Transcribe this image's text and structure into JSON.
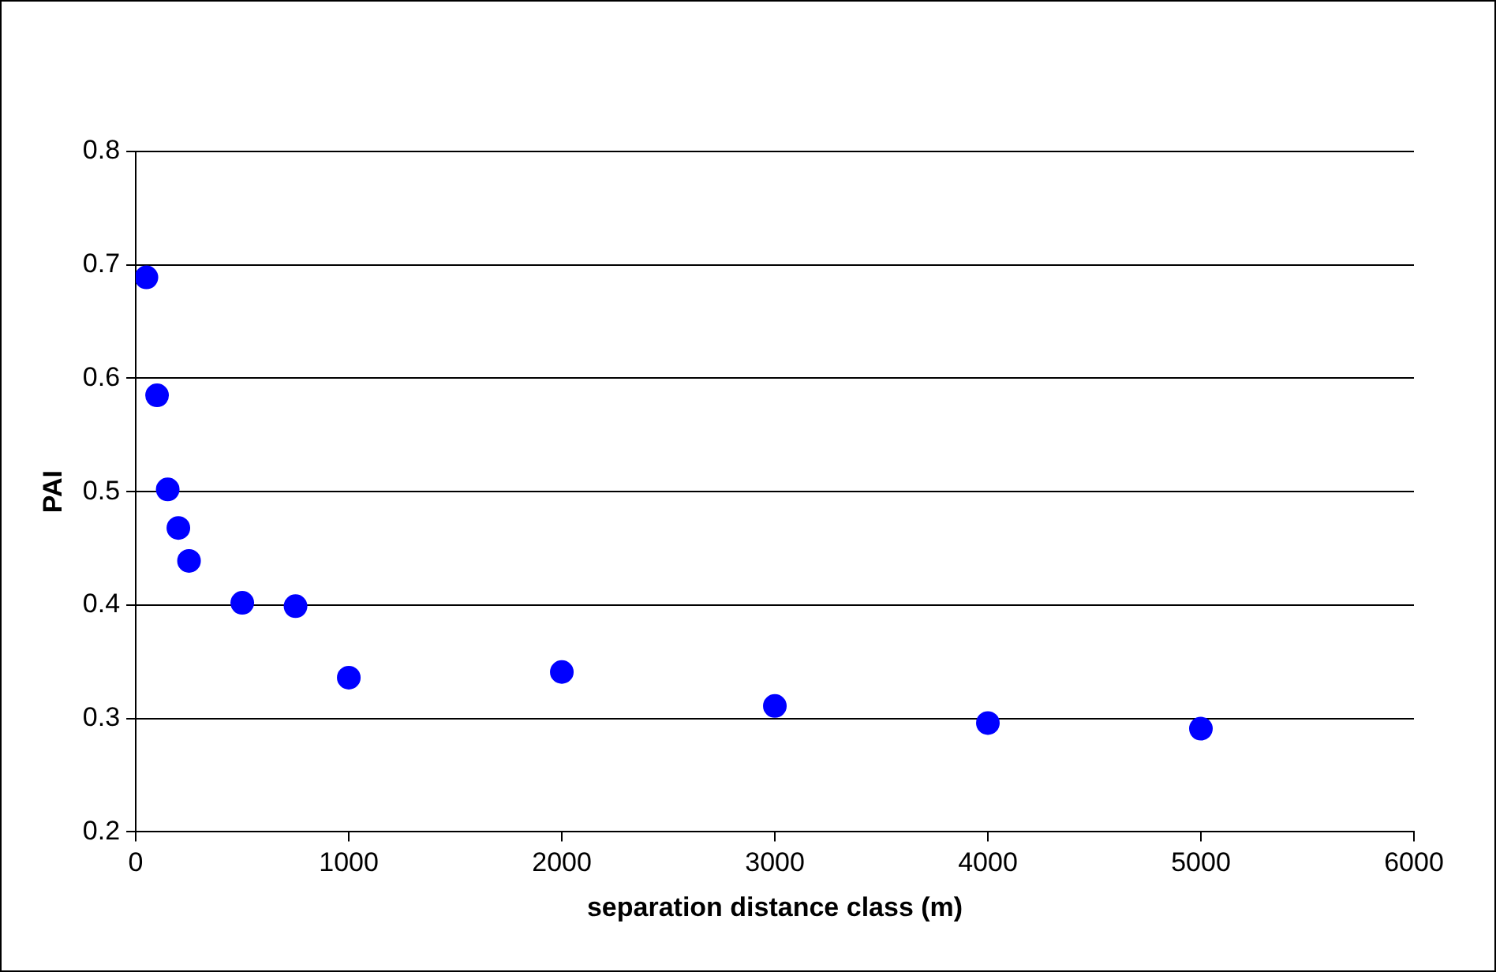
{
  "chart_data": {
    "type": "scatter",
    "xlabel": "separation distance class (m)",
    "ylabel": "PAI",
    "x": [
      50,
      100,
      150,
      200,
      250,
      500,
      750,
      1000,
      2000,
      3000,
      4000,
      5000
    ],
    "series": [
      {
        "color": "#0000ff",
        "values": [
          0.689,
          0.585,
          0.502,
          0.468,
          0.439,
          0.402,
          0.399,
          0.336,
          0.341,
          0.311,
          0.296,
          0.291
        ]
      }
    ],
    "xlim": [
      0,
      6000
    ],
    "xticks": [
      0,
      1000,
      2000,
      3000,
      4000,
      5000,
      6000
    ],
    "ylim": [
      0.2,
      0.8
    ],
    "yticks": [
      0.2,
      0.3,
      0.4,
      0.5,
      0.6,
      0.7,
      0.8
    ],
    "grid": "y",
    "legend": false,
    "marker": "circle"
  }
}
